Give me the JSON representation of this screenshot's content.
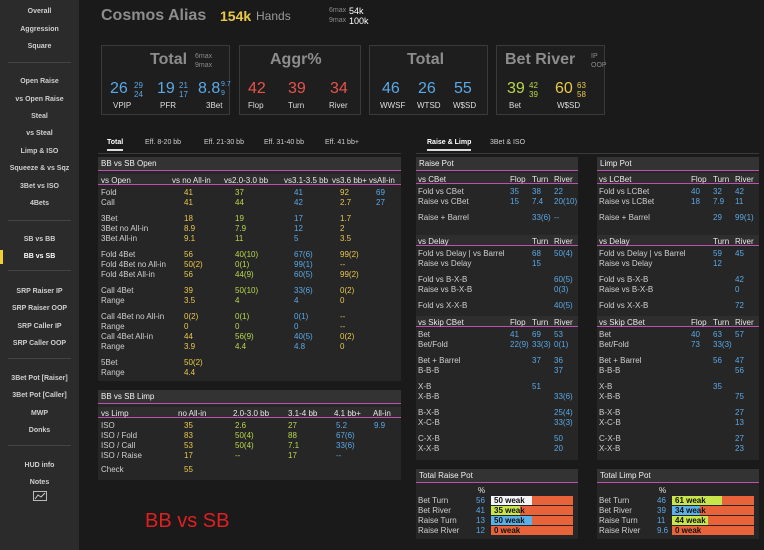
{
  "sidebar": {
    "items": [
      "Overall",
      "Aggression",
      "Square",
      "Open Raise",
      "vs Open Raise",
      "Steal",
      "vs Steal",
      "Limp & ISO",
      "Squeeze & vs Sqz",
      "3Bet vs ISO",
      "4Bets",
      "SB vs BB",
      "BB vs SB",
      "SRP Raiser IP",
      "SRP Raiser OOP",
      "SRP Caller IP",
      "SRP Caller OOP",
      "3Bet Pot [Raiser]",
      "3Bet Pot [Caller]",
      "MWP",
      "Donks",
      "HUD info",
      "Notes"
    ],
    "active": "BB vs SB",
    "chart_icon": "chart-icon"
  },
  "header": {
    "name": "Cosmos Alias",
    "hands_count": "154k",
    "hands_label": "Hands",
    "max6_label": "6max",
    "max6_value": "54k",
    "max9_label": "9max",
    "max9_value": "100k"
  },
  "boxes": {
    "total1": {
      "title": "Total",
      "sub1": "6max",
      "sub2": "9max",
      "vpip": "26",
      "vpip_a": "29",
      "vpip_b": "24",
      "vpip_label": "VPIP",
      "pfr": "19",
      "pfr_a": "21",
      "pfr_b": "17",
      "pfr_label": "PFR",
      "bet3": "8.8",
      "bet3_a": "9.7",
      "bet3_b": "9",
      "bet3_label": "3Bet"
    },
    "aggr": {
      "title": "Aggr%",
      "flop": "42",
      "turn": "39",
      "river": "34",
      "flop_label": "Flop",
      "turn_label": "Turn",
      "river_label": "River"
    },
    "total2": {
      "title": "Total",
      "wwsf": "46",
      "wtsd": "26",
      "wsd": "55",
      "wwsf_label": "WWSF",
      "wtsd_label": "WTSD",
      "wsd_label": "W$SD"
    },
    "betriver": {
      "title": "Bet River",
      "ip": "IP",
      "oop": "OOP",
      "bet": "39",
      "bet_a": "42",
      "bet_b": "39",
      "bet_label": "Bet",
      "wsd": "60",
      "wsd_a": "63",
      "wsd_b": "58",
      "wsd_label": "W$SD"
    }
  },
  "tabs_left": [
    "Total",
    "Eff. 8-20 bb",
    "Eff. 21-30 bb",
    "Eff. 31-40 bb",
    "Eff. 41 bb+"
  ],
  "tabs_right": [
    "Raise & Limp",
    "3Bet & ISO"
  ],
  "open_panel": {
    "title": "BB vs SB Open",
    "headers": [
      "vs Open",
      "vs no All-in",
      "vs2.0-3.0 bb",
      "vs3.1-3.5 bb",
      "vs3.6 bb+",
      "vsAll-in"
    ],
    "rows": [
      {
        "label": "Fold",
        "v": [
          "41",
          "37",
          "41",
          "92",
          "69"
        ]
      },
      {
        "label": "Call",
        "v": [
          "41",
          "44",
          "42",
          "2.7",
          "27"
        ]
      },
      {
        "label": "3Bet",
        "v": [
          "18",
          "19",
          "17",
          "1.7",
          ""
        ]
      },
      {
        "label": "3Bet no All-in",
        "v": [
          "8.9",
          "7.9",
          "12",
          "2",
          ""
        ]
      },
      {
        "label": "3Bet All-in",
        "v": [
          "9.1",
          "11",
          "5",
          "3.5",
          ""
        ]
      },
      {
        "label": "Fold 4Bet",
        "v": [
          "56",
          "40(10)",
          "67(6)",
          "99(2)",
          ""
        ]
      },
      {
        "label": "Fold 4Bet no All-in",
        "v": [
          "50(2)",
          "0(1)",
          "99(1)",
          "--",
          ""
        ]
      },
      {
        "label": "Fold 4Bet All-in",
        "v": [
          "56",
          "44(9)",
          "60(5)",
          "99(2)",
          ""
        ]
      },
      {
        "label": "Call 4Bet",
        "v": [
          "39",
          "50(10)",
          "33(6)",
          "0(2)",
          ""
        ]
      },
      {
        "label": "Range",
        "v": [
          "3.5",
          "4",
          "4",
          "0",
          ""
        ]
      },
      {
        "label": "Call 4Bet no All-in",
        "v": [
          "0(2)",
          "0(1)",
          "0(1)",
          "--",
          ""
        ]
      },
      {
        "label": "Range",
        "v": [
          "0",
          "0",
          "0",
          "--",
          ""
        ]
      },
      {
        "label": "Call 4Bet All-in",
        "v": [
          "44",
          "56(9)",
          "40(5)",
          "0(2)",
          ""
        ]
      },
      {
        "label": "Range",
        "v": [
          "3.9",
          "4.4",
          "4.8",
          "0",
          ""
        ]
      },
      {
        "label": "5Bet",
        "v": [
          "50(2)",
          "",
          "",
          "",
          ""
        ]
      },
      {
        "label": "Range",
        "v": [
          "4.4",
          "",
          "",
          "",
          ""
        ]
      }
    ]
  },
  "limp_panel": {
    "title": "BB vs SB Limp",
    "headers": [
      "vs Limp",
      "no All-in",
      "2.0-3.0 bb",
      "3.1-4 bb",
      "4.1 bb+",
      "All-in"
    ],
    "rows": [
      {
        "label": "ISO",
        "v": [
          "35",
          "2.6",
          "27",
          "5.2",
          "9.9"
        ]
      },
      {
        "label": "ISO / Fold",
        "v": [
          "83",
          "50(4)",
          "88",
          "67(6)",
          ""
        ]
      },
      {
        "label": "ISO / Call",
        "v": [
          "53",
          "50(4)",
          "7.1",
          "33(6)",
          ""
        ]
      },
      {
        "label": "ISO / Raise",
        "v": [
          "17",
          "--",
          "17",
          "--",
          ""
        ]
      },
      {
        "label": "Check",
        "v": [
          "55",
          "",
          "",
          "",
          ""
        ]
      }
    ]
  },
  "raise_pot": {
    "title": "Raise Pot",
    "cbet": {
      "head": [
        "vs CBet",
        "Flop",
        "Turn",
        "River"
      ],
      "rows": [
        {
          "label": "Fold vs CBet",
          "v": [
            "35",
            "38",
            "22"
          ]
        },
        {
          "label": "Raise vs CBet",
          "v": [
            "15",
            "7.4",
            "20(10)"
          ]
        },
        {
          "label": "Raise + Barrel",
          "v": [
            "",
            "33(6)",
            "--"
          ]
        }
      ]
    },
    "delay": {
      "head": [
        "vs Delay",
        "",
        "Turn",
        "River"
      ],
      "rows": [
        {
          "label": "Fold vs Delay | vs Barrel",
          "v": [
            "",
            "68",
            "50(4)"
          ]
        },
        {
          "label": "Raise vs Delay",
          "v": [
            "",
            "15",
            ""
          ]
        },
        {
          "label": "Fold vs B-X-B",
          "v": [
            "",
            "",
            "60(5)"
          ]
        },
        {
          "label": "Raise vs B-X-B",
          "v": [
            "",
            "",
            "0(3)"
          ]
        },
        {
          "label": "Fold vs X-X-B",
          "v": [
            "",
            "",
            "40(5)"
          ]
        }
      ]
    },
    "skip": {
      "head": [
        "vs Skip CBet",
        "Flop",
        "Turn",
        "River"
      ],
      "rows": [
        {
          "label": "Bet",
          "v": [
            "41",
            "69",
            "53"
          ]
        },
        {
          "label": "Bet/Fold",
          "v": [
            "22(9)",
            "33(3)",
            "0(1)"
          ]
        },
        {
          "label": "Bet + Barrel",
          "v": [
            "",
            "37",
            "36"
          ]
        },
        {
          "label": "B-B-B",
          "v": [
            "",
            "",
            "37"
          ]
        },
        {
          "label": "X-B",
          "v": [
            "",
            "51",
            ""
          ]
        },
        {
          "label": "X-B-B",
          "v": [
            "",
            "",
            "33(6)"
          ]
        },
        {
          "label": "B-X-B",
          "v": [
            "",
            "",
            "25(4)"
          ]
        },
        {
          "label": "X-C-B",
          "v": [
            "",
            "",
            "33(3)"
          ]
        },
        {
          "label": "C-X-B",
          "v": [
            "",
            "",
            "50"
          ]
        },
        {
          "label": "X-X-B",
          "v": [
            "",
            "",
            "20"
          ]
        }
      ]
    }
  },
  "limp_pot": {
    "title": "Limp Pot",
    "cbet": {
      "head": [
        "vs LCBet",
        "Flop",
        "Turn",
        "River"
      ],
      "rows": [
        {
          "label": "Fold vs LCBet",
          "v": [
            "40",
            "32",
            "42"
          ]
        },
        {
          "label": "Raise vs LCBet",
          "v": [
            "18",
            "7.9",
            "11"
          ]
        },
        {
          "label": "Raise + Barrel",
          "v": [
            "",
            "29",
            "99(1)"
          ]
        }
      ]
    },
    "delay": {
      "head": [
        "vs Delay",
        "",
        "Turn",
        "River"
      ],
      "rows": [
        {
          "label": "Fold vs Delay | vs Barrel",
          "v": [
            "",
            "59",
            "45"
          ]
        },
        {
          "label": "Raise vs Delay",
          "v": [
            "",
            "12",
            ""
          ]
        },
        {
          "label": "Fold vs B-X-B",
          "v": [
            "",
            "",
            "42"
          ]
        },
        {
          "label": "Raise vs B-X-B",
          "v": [
            "",
            "",
            "0"
          ]
        },
        {
          "label": "Fold vs X-X-B",
          "v": [
            "",
            "",
            "72"
          ]
        }
      ]
    },
    "skip": {
      "head": [
        "vs Skip CBet",
        "Flop",
        "Turn",
        "River"
      ],
      "rows": [
        {
          "label": "Bet",
          "v": [
            "40",
            "63",
            "57"
          ]
        },
        {
          "label": "Bet/Fold",
          "v": [
            "73",
            "33(3)",
            ""
          ]
        },
        {
          "label": "Bet + Barrel",
          "v": [
            "",
            "56",
            "47"
          ]
        },
        {
          "label": "B-B-B",
          "v": [
            "",
            "",
            "56"
          ]
        },
        {
          "label": "X-B",
          "v": [
            "",
            "35",
            ""
          ]
        },
        {
          "label": "X-B-B",
          "v": [
            "",
            "",
            "75"
          ]
        },
        {
          "label": "B-X-B",
          "v": [
            "",
            "",
            "27"
          ]
        },
        {
          "label": "X-C-B",
          "v": [
            "",
            "",
            "13"
          ]
        },
        {
          "label": "C-X-B",
          "v": [
            "",
            "",
            "27"
          ]
        },
        {
          "label": "X-X-B",
          "v": [
            "",
            "",
            "23"
          ]
        }
      ]
    }
  },
  "total_raise_pot": {
    "title": "Total Raise Pot",
    "pct_header": "%",
    "rows": [
      {
        "label": "Bet Turn",
        "pct": "56",
        "bar": "50 weak",
        "fill": 0.5,
        "fill_color": "#f5f5f5"
      },
      {
        "label": "Bet River",
        "pct": "41",
        "bar": "35 weak",
        "fill": 0.35,
        "fill_color": "#c8e64a"
      },
      {
        "label": "Raise Turn",
        "pct": "13",
        "bar": "50 weak",
        "fill": 0.5,
        "fill_color": "#5ab0e8"
      },
      {
        "label": "Raise River",
        "pct": "12",
        "bar": "0 weak",
        "fill": 0,
        "fill_color": "#f5f5f5"
      }
    ]
  },
  "total_limp_pot": {
    "title": "Total Limp Pot",
    "pct_header": "%",
    "rows": [
      {
        "label": "Bet Turn",
        "pct": "46",
        "bar": "61 weak",
        "fill": 0.61,
        "fill_color": "#c8e64a"
      },
      {
        "label": "Bet River",
        "pct": "39",
        "bar": "34 weak",
        "fill": 0.34,
        "fill_color": "#5ab0e8"
      },
      {
        "label": "Raise Turn",
        "pct": "11",
        "bar": "44 weak",
        "fill": 0.44,
        "fill_color": "#c8e64a"
      },
      {
        "label": "Raise River",
        "pct": "9.6",
        "bar": "0 weak",
        "fill": 0,
        "fill_color": "#f5f5f5"
      }
    ]
  },
  "overlay_label": "BB vs SB"
}
